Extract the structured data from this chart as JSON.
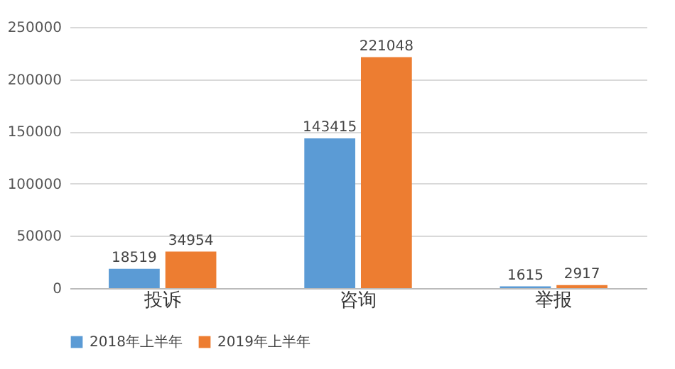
{
  "chart_data": {
    "type": "bar",
    "categories": [
      "投诉",
      "咨询",
      "举报"
    ],
    "series": [
      {
        "name": "2018年上半年",
        "color": "#5b9bd5",
        "values": [
          18519,
          143415,
          1615
        ]
      },
      {
        "name": "2019年上半年",
        "color": "#ed7d31",
        "values": [
          34954,
          221048,
          2917
        ]
      }
    ],
    "ylim": [
      0,
      250000
    ],
    "yticks": [
      0,
      50000,
      100000,
      150000,
      200000,
      250000
    ],
    "grid": "y",
    "legend": "bottom",
    "data_labels": true
  }
}
